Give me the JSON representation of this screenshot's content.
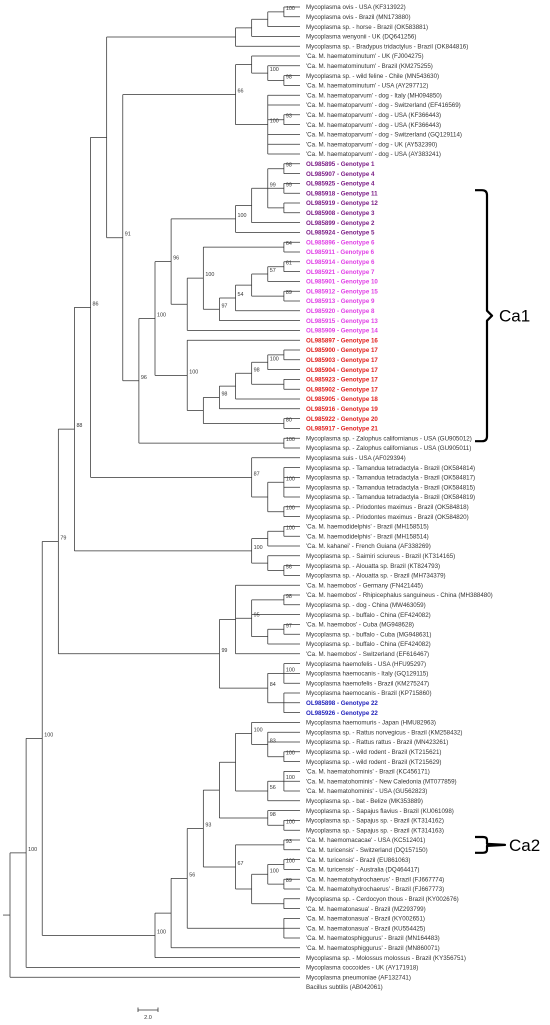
{
  "figure": {
    "type": "phylogenetic-tree",
    "colors": {
      "default": "#333333",
      "purple": "#7b1d85",
      "magenta": "#e040e6",
      "red": "#e0201f",
      "blue": "#2222bb"
    },
    "scale_bar": "2.0",
    "clades": [
      {
        "label": "Ca1",
        "first_leaf": 19,
        "last_leaf": 44
      },
      {
        "label": "Ca2",
        "first_leaf": 85,
        "last_leaf": 86
      }
    ],
    "leaves": [
      {
        "name": "Mycoplasma ovis - USA (KF313922)"
      },
      {
        "name": "Mycoplasma ovis - Brazil (MN173880)"
      },
      {
        "name": "Mycoplasma sp. - horse - Brazil (OK583881)"
      },
      {
        "name": "Mycoplasma wenyonii - UK (DQ641256)"
      },
      {
        "name": "Mycoplasma sp. - Bradypus tridactylus - Brazil (OK844816)"
      },
      {
        "name": "'Ca. M. haematominutum' - UK (FJ004275)"
      },
      {
        "name": "'Ca. M. haematominutum' - Brazil (KM275255)"
      },
      {
        "name": "Mycoplasma sp. - wild feline - Chile (MN543630)"
      },
      {
        "name": "'Ca. M. haematominutum' - USA (AY297712)"
      },
      {
        "name": "'Ca. M. haematoparvum' - dog - Italy (MH094850)"
      },
      {
        "name": "'Ca. M. haematoparvum' - dog - Switzerland (EF416569)"
      },
      {
        "name": "'Ca. M. haematoparvum' - dog - USA (KF366443)"
      },
      {
        "name": "'Ca. M. haematoparvum' - dog - USA (KF366443)"
      },
      {
        "name": "'Ca. M. haematoparvum' - dog - Switzerland (GQ129114)"
      },
      {
        "name": "'Ca. M. haematoparvum' - dog - UK (AY532390)"
      },
      {
        "name": "'Ca. M. haematoparvum' - dog - USA (AY383241)"
      },
      {
        "name": "OL985895 - Genotype 1",
        "color": "purple",
        "bold": true
      },
      {
        "name": "OL985907 - Genotype 4",
        "color": "purple",
        "bold": true
      },
      {
        "name": "OL985925 - Genotype 4",
        "color": "purple",
        "bold": true
      },
      {
        "name": "OL985918 - Genotype 11",
        "color": "purple",
        "bold": true
      },
      {
        "name": "OL985919 - Genotype 12",
        "color": "purple",
        "bold": true
      },
      {
        "name": "OL985908 - Genotype 3",
        "color": "purple",
        "bold": true
      },
      {
        "name": "OL985899 - Genotype 2",
        "color": "purple",
        "bold": true
      },
      {
        "name": "OL985924 - Genotype 5",
        "color": "purple",
        "bold": true
      },
      {
        "name": "OL985896 - Genotype 6",
        "color": "magenta",
        "bold": true
      },
      {
        "name": "OL985911 - Genotype 6",
        "color": "magenta",
        "bold": true
      },
      {
        "name": "OL985914 - Genotype 6",
        "color": "magenta",
        "bold": true
      },
      {
        "name": "OL985921 - Genotype 7",
        "color": "magenta",
        "bold": true
      },
      {
        "name": "OL985901 - Genotype 10",
        "color": "magenta",
        "bold": true
      },
      {
        "name": "OL985912 - Genotype 15",
        "color": "magenta",
        "bold": true
      },
      {
        "name": "OL985913 - Genotype 9",
        "color": "magenta",
        "bold": true
      },
      {
        "name": "OL985920 - Genotype 8",
        "color": "magenta",
        "bold": true
      },
      {
        "name": "OL985915 - Genotype 13",
        "color": "magenta",
        "bold": true
      },
      {
        "name": "OL985909 - Genotype 14",
        "color": "magenta",
        "bold": true
      },
      {
        "name": "OL985897 - Genotype 16",
        "color": "red",
        "bold": true
      },
      {
        "name": "OL985900 - Genotype 17",
        "color": "red",
        "bold": true
      },
      {
        "name": "OL985903 - Genotype 17",
        "color": "red",
        "bold": true
      },
      {
        "name": "OL985904 - Genotype 17",
        "color": "red",
        "bold": true
      },
      {
        "name": "OL985923 - Genotype 17",
        "color": "red",
        "bold": true
      },
      {
        "name": "OL985902 - Genotype 17",
        "color": "red",
        "bold": true
      },
      {
        "name": "OL985905 - Genotype 18",
        "color": "red",
        "bold": true
      },
      {
        "name": "OL985916 - Genotype 19",
        "color": "red",
        "bold": true
      },
      {
        "name": "OL985922 - Genotype 20",
        "color": "red",
        "bold": true
      },
      {
        "name": "OL985917 - Genotype 21",
        "color": "red",
        "bold": true
      },
      {
        "name": "Mycoplasma sp. - Zalophus californianus - USA (GU905012)"
      },
      {
        "name": "Mycoplasma sp. - Zalophus californianus - USA (GU905011)"
      },
      {
        "name": "Mycoplasma suis - USA (AF029394)"
      },
      {
        "name": "Mycoplasma sp. - Tamandua tetradactyla - Brazil (OK584814)"
      },
      {
        "name": "Mycoplasma sp. - Tamandua tetradactyla - Brazil (OK584817)"
      },
      {
        "name": "Mycoplasma sp. - Tamandua tetradactyla - Brazil (OK584815)"
      },
      {
        "name": "Mycoplasma sp. - Tamandua tetradactyla - Brazil (OK584819)"
      },
      {
        "name": "Mycoplasma sp. - Priodontes maximus - Brazil (OK584818)"
      },
      {
        "name": "Mycoplasma sp. - Priodontes maximus - Brazil (OK584820)"
      },
      {
        "name": "'Ca. M. haemodidelphis' - Brazil (MH158515)"
      },
      {
        "name": "'Ca. M. haemodidelphis' - Brazil (MH158514)"
      },
      {
        "name": "'Ca. M. kahanei' - French Guiana (AF338269)"
      },
      {
        "name": "Mycoplasma sp. - Saimiri sciureus - Brazil (KT314165)"
      },
      {
        "name": "Mycoplasma sp. - Alouatta sp. Brazil (KT824793)"
      },
      {
        "name": "Mycoplasma sp. - Alouatta sp. - Brazil (MH734379)"
      },
      {
        "name": "'Ca. M. haemobos' - Germany (FN421445)"
      },
      {
        "name": "'Ca. M. haemobos' - Rhipicephalus sanguineus - China (MH388480)"
      },
      {
        "name": "Mycoplasma sp. - dog - China (MW463059)"
      },
      {
        "name": "Mycoplasma sp. - buffalo - China (EF424082)"
      },
      {
        "name": "'Ca. M. haemobos' - Cuba (MG948628)"
      },
      {
        "name": "Mycoplasma sp. - buffalo - Cuba (MG948631)"
      },
      {
        "name": "Mycoplasma sp. - buffalo - China (EF424082)"
      },
      {
        "name": "'Ca. M. haemobos' - Switzerland (EF616467)"
      },
      {
        "name": "Mycoplasma haemofelis - USA (HFU95297)"
      },
      {
        "name": "Mycoplasma haemocanis - Italy (GQ129115)"
      },
      {
        "name": "Mycoplasma haemofelis - Brazil (KM275247)"
      },
      {
        "name": "Mycoplasma haemocanis - Brazil (KP715860)"
      },
      {
        "name": "OL985898 - Genotype 22",
        "color": "blue",
        "bold": true
      },
      {
        "name": "OL985926 - Genotype 22",
        "color": "blue",
        "bold": true
      },
      {
        "name": "Mycoplasma haemomuris - Japan (HMU82963)"
      },
      {
        "name": "Mycoplasma sp. - Rattus norvegicus - Brazil (KM258432)"
      },
      {
        "name": "Mycoplasma sp. - Rattus rattus - Brazil (MN423261)"
      },
      {
        "name": "Mycoplasma sp. - wild rodent - Brazil (KT215621)"
      },
      {
        "name": "Mycoplasma sp. - wild rodent - Brazil (KT215629)"
      },
      {
        "name": "'Ca. M. haematohominis' - Brazil (KC456171)"
      },
      {
        "name": "'Ca. M. haematohominis' - New Caledonia (MT077859)"
      },
      {
        "name": "'Ca. M. haematohominis' - USA (GU562823)"
      },
      {
        "name": "Mycoplasma sp. - bat - Belize (MK353889)"
      },
      {
        "name": "Mycoplasma sp. - Sapajus flavius - Brazil (KU061098)"
      },
      {
        "name": "Mycoplasma sp. - Sapajus sp. - Brazil (KT314162)"
      },
      {
        "name": "Mycoplasma sp. - Sapajus sp. - Brazil (KT314163)"
      },
      {
        "name": "'Ca. M. haemomacacae' - USA (KC512401)"
      },
      {
        "name": "'Ca. M. turicensis' - Switzerland (DQ157150)"
      },
      {
        "name": "'Ca. M. turicensis' - Brazil (EU861063)"
      },
      {
        "name": "'Ca. M. turicensis' - Australia (DQ464417)"
      },
      {
        "name": "'Ca. M. haematohydrochaerus' - Brazil (FJ667774)"
      },
      {
        "name": "'Ca. M. haematohydrochaerus' - Brazil (FJ667773)"
      },
      {
        "name": "Mycoplasma sp. - Cerdocyon thous - Brazil (KY002676)"
      },
      {
        "name": "'Ca. M. haematonasua' - Brazil (MZ293799)"
      },
      {
        "name": "'Ca. M. haematonasua' - Brazil (KY002651)"
      },
      {
        "name": "'Ca. M. haematonasua' - Brazil (KU554425)"
      },
      {
        "name": "'Ca. M. haematosphiggurus' - Brazil (MN164483)"
      },
      {
        "name": "'Ca. M. haematosphiggurus' - Brazil (MN860071)"
      },
      {
        "name": "Mycoplasma sp. - Molossus molossus - Brazil (KY356751)"
      },
      {
        "name": "Mycoplasma coccoides - UK (AY171918)"
      },
      {
        "name": "Mycoplasma pneumoniae (AF132741)"
      },
      {
        "name": "Bacillus subtilis (AB042061)"
      }
    ],
    "nodes": [
      {
        "id": "o1",
        "children": [
          0,
          1
        ],
        "support": "100"
      },
      {
        "id": "o2",
        "children": [
          "o1",
          2
        ]
      },
      {
        "id": "o3",
        "children": [
          "o2",
          3
        ]
      },
      {
        "id": "o4",
        "children": [
          "o3",
          4
        ]
      },
      {
        "id": "hm1",
        "children": [
          7,
          8
        ],
        "support": "98"
      },
      {
        "id": "hm2",
        "children": [
          6,
          "hm1"
        ],
        "support": "100"
      },
      {
        "id": "hm3",
        "children": [
          5,
          "hm2"
        ]
      },
      {
        "id": "hp1",
        "children": [
          11,
          12
        ],
        "support": "93"
      },
      {
        "id": "hp2",
        "children": [
          9,
          10,
          "hp1",
          13,
          14,
          15
        ],
        "support": "100"
      },
      {
        "id": "hm4",
        "children": [
          "hm3",
          "hp2"
        ],
        "support": "66"
      },
      {
        "id": "p1",
        "children": [
          16,
          17
        ],
        "support": "98"
      },
      {
        "id": "p2",
        "children": [
          18,
          19
        ],
        "support": "99"
      },
      {
        "id": "p3",
        "children": [
          20,
          21
        ]
      },
      {
        "id": "p4",
        "children": [
          "p1",
          "p2",
          "p3"
        ],
        "support": "99"
      },
      {
        "id": "p5",
        "children": [
          "p4",
          22
        ]
      },
      {
        "id": "p6",
        "children": [
          "p5",
          23
        ],
        "support": "100"
      },
      {
        "id": "m1",
        "children": [
          24,
          25
        ],
        "support": "64"
      },
      {
        "id": "m2",
        "children": [
          26,
          27
        ],
        "support": "61"
      },
      {
        "id": "m3",
        "children": [
          "m2",
          28
        ],
        "support": "57"
      },
      {
        "id": "m4",
        "children": [
          29,
          30
        ],
        "support": "89"
      },
      {
        "id": "m5",
        "children": [
          "m3",
          "m4"
        ]
      },
      {
        "id": "m6",
        "children": [
          "m5",
          31
        ],
        "support": "54"
      },
      {
        "id": "m7",
        "children": [
          "m6",
          32
        ],
        "support": "97"
      },
      {
        "id": "m8",
        "children": [
          "m1",
          "m7"
        ],
        "support": "100"
      },
      {
        "id": "m9",
        "children": [
          "m8",
          33
        ]
      },
      {
        "id": "p7",
        "children": [
          "p6",
          "m9"
        ],
        "support": "96"
      },
      {
        "id": "r1",
        "children": [
          35,
          36
        ]
      },
      {
        "id": "r2",
        "children": [
          "r1",
          37
        ],
        "support": "100"
      },
      {
        "id": "r3",
        "children": [
          38,
          39
        ]
      },
      {
        "id": "r4",
        "children": [
          "r2",
          "r3"
        ],
        "support": "98"
      },
      {
        "id": "r5",
        "children": [
          "r4",
          40
        ]
      },
      {
        "id": "r6",
        "children": [
          "r5",
          41
        ],
        "support": "98"
      },
      {
        "id": "r7",
        "children": [
          42,
          43
        ],
        "support": "80"
      },
      {
        "id": "r8",
        "children": [
          "r6",
          "r7"
        ]
      },
      {
        "id": "r9",
        "children": [
          "r8",
          34
        ],
        "support": "100"
      },
      {
        "id": "c1",
        "children": [
          "p7",
          "r9"
        ],
        "support": "100"
      },
      {
        "id": "z1",
        "children": [
          44,
          45
        ],
        "support": "100"
      },
      {
        "id": "c2",
        "children": [
          "c1",
          "z1"
        ],
        "support": "96"
      },
      {
        "id": "hm5",
        "children": [
          "hm4",
          "c2"
        ],
        "support": "91"
      },
      {
        "id": "hm6",
        "children": [
          "o4",
          "hm5"
        ]
      },
      {
        "id": "t1",
        "children": [
          47,
          48,
          49,
          50
        ],
        "support": "100"
      },
      {
        "id": "t2",
        "children": [
          51,
          52
        ],
        "support": "100"
      },
      {
        "id": "t3",
        "children": [
          "t1",
          "t2"
        ]
      },
      {
        "id": "s1",
        "children": [
          46,
          "t3"
        ],
        "support": "87"
      },
      {
        "id": "s2",
        "children": [
          "hm6",
          "s1"
        ],
        "support": "86"
      },
      {
        "id": "d1",
        "children": [
          53,
          54
        ],
        "support": "100"
      },
      {
        "id": "d2",
        "children": [
          "d1",
          55
        ]
      },
      {
        "id": "a1",
        "children": [
          57,
          58
        ],
        "support": "56"
      },
      {
        "id": "a2",
        "children": [
          56,
          "a1"
        ]
      },
      {
        "id": "d3",
        "children": [
          "d2",
          "a2"
        ],
        "support": "100"
      },
      {
        "id": "d4",
        "children": [
          "s2",
          "d3"
        ],
        "support": "88"
      },
      {
        "id": "b1",
        "children": [
          60,
          61
        ],
        "support": "98"
      },
      {
        "id": "b2",
        "children": [
          63,
          64
        ],
        "support": "97"
      },
      {
        "id": "b3",
        "children": [
          "b2",
          65
        ]
      },
      {
        "id": "b4",
        "children": [
          "b1",
          62,
          "b3"
        ],
        "support": "95"
      },
      {
        "id": "b5",
        "children": [
          59,
          "b4",
          66
        ]
      },
      {
        "id": "f1",
        "children": [
          67,
          68,
          69
        ],
        "support": "100"
      },
      {
        "id": "f2",
        "children": [
          70,
          71,
          72
        ]
      },
      {
        "id": "f3",
        "children": [
          "f1",
          "f2"
        ],
        "support": "84"
      },
      {
        "id": "b6",
        "children": [
          "b5",
          "f3"
        ],
        "support": "99"
      },
      {
        "id": "b7",
        "children": [
          "d4",
          "b6"
        ],
        "support": "79"
      },
      {
        "id": "w1",
        "children": [
          76,
          77
        ],
        "support": "100"
      },
      {
        "id": "w2",
        "children": [
          74,
          75,
          "w1"
        ],
        "support": "83"
      },
      {
        "id": "w3",
        "children": [
          "w2",
          73
        ],
        "support": "100"
      },
      {
        "id": "w4",
        "children": [
          78,
          79,
          80
        ],
        "support": "100"
      },
      {
        "id": "w5",
        "children": [
          "w4",
          81
        ],
        "support": "56"
      },
      {
        "id": "w6",
        "children": [
          "w3",
          "w5"
        ]
      },
      {
        "id": "y1",
        "children": [
          83,
          84
        ],
        "support": "100"
      },
      {
        "id": "y2",
        "children": [
          82,
          "y1"
        ],
        "support": "98"
      },
      {
        "id": "y3",
        "children": [
          "w6",
          "y2"
        ]
      },
      {
        "id": "k1",
        "children": [
          85,
          86
        ],
        "support": "93"
      },
      {
        "id": "k2",
        "children": [
          87,
          88
        ],
        "support": "100"
      },
      {
        "id": "k3",
        "children": [
          89,
          90
        ],
        "support": "89"
      },
      {
        "id": "k4",
        "children": [
          "k2",
          "k3"
        ],
        "support": "100"
      },
      {
        "id": "k5",
        "children": [
          91,
          92
        ]
      },
      {
        "id": "k6",
        "children": [
          "k4",
          "k5"
        ]
      },
      {
        "id": "k7",
        "children": [
          "k1",
          "k6"
        ],
        "support": "67"
      },
      {
        "id": "k8",
        "children": [
          "y3",
          "k7"
        ],
        "support": "93"
      },
      {
        "id": "k9",
        "children": [
          93,
          94,
          95
        ]
      },
      {
        "id": "k10",
        "children": [
          "k8",
          "k9"
        ],
        "support": "56"
      },
      {
        "id": "k11",
        "children": [
          "k10",
          96
        ]
      },
      {
        "id": "k12",
        "children": [
          "k11",
          97
        ],
        "support": "100"
      },
      {
        "id": "g1",
        "children": [
          "b7",
          "k12"
        ],
        "support": "100"
      },
      {
        "id": "g2",
        "children": [
          "g1",
          98
        ],
        "support": "100"
      },
      {
        "id": "root",
        "children": [
          "g2",
          99
        ]
      }
    ]
  }
}
